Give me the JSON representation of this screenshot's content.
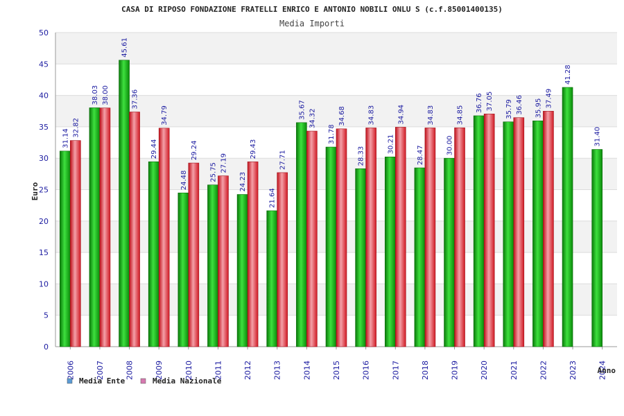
{
  "chart_data": {
    "type": "bar",
    "title": "CASA DI RIPOSO FONDAZIONE FRATELLI ENRICO E ANTONIO NOBILI ONLU S (c.f.85001400135)",
    "subtitle": "Media Importi",
    "xlabel": "Anno",
    "ylabel": "Euro",
    "ylim": [
      0,
      50
    ],
    "yticks": [
      "0",
      "5",
      "10",
      "15",
      "20",
      "25",
      "30",
      "35",
      "40",
      "45",
      "50"
    ],
    "categories": [
      "2006",
      "2007",
      "2008",
      "2009",
      "2010",
      "2011",
      "2012",
      "2013",
      "2014",
      "2015",
      "2016",
      "2017",
      "2018",
      "2019",
      "2020",
      "2021",
      "2022",
      "2023",
      "2024"
    ],
    "series": [
      {
        "name": "Media Ente",
        "color": "#1fb31f",
        "legend_color": "#5b9bd5",
        "values": [
          31.14,
          38.03,
          45.61,
          29.44,
          24.48,
          25.75,
          24.23,
          21.64,
          35.67,
          31.78,
          28.33,
          30.21,
          28.47,
          30.0,
          36.76,
          35.79,
          35.95,
          41.28,
          31.4
        ],
        "labels": [
          "31.14",
          "38.03",
          "45.61",
          "29.44",
          "24.48",
          "25.75",
          "24.23",
          "21.64",
          "35.67",
          "31.78",
          "28.33",
          "30.21",
          "28.47",
          "30.00",
          "36.76",
          "35.79",
          "35.95",
          "41.28",
          "31.40"
        ]
      },
      {
        "name": "Media Nazionale",
        "color": "#e0303a",
        "legend_color": "#d67ab0",
        "values": [
          32.82,
          38.0,
          37.36,
          34.79,
          29.24,
          27.19,
          29.43,
          27.71,
          34.32,
          34.68,
          34.83,
          34.94,
          34.83,
          34.85,
          37.05,
          36.46,
          37.49,
          null,
          null
        ],
        "labels": [
          "32.82",
          "38.00",
          "37.36",
          "34.79",
          "29.24",
          "27.19",
          "29.43",
          "27.71",
          "34.32",
          "34.68",
          "34.83",
          "34.94",
          "34.83",
          "34.85",
          "37.05",
          "36.46",
          "37.49",
          null,
          null
        ]
      }
    ],
    "legend_position": "bottom-left",
    "grid": true
  }
}
